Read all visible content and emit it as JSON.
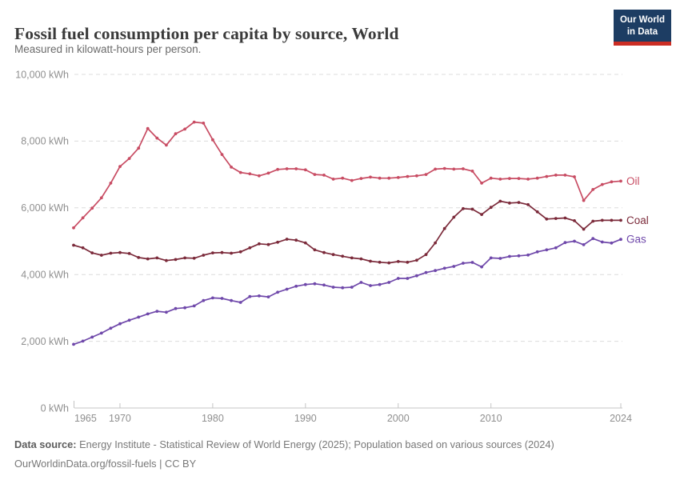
{
  "header": {
    "title": "Fossil fuel consumption per capita by source, World",
    "subtitle": "Measured in kilowatt-hours per person.",
    "logo": {
      "line1": "Our World",
      "line2": "in Data",
      "bg": "#1d3d63",
      "accent": "#cb2d24"
    }
  },
  "chart_data": {
    "type": "line",
    "title": "Fossil fuel consumption per capita by source, World",
    "ylabel": "kilowatt-hours per person",
    "xlim": [
      1965,
      2024
    ],
    "ylim": [
      0,
      10000
    ],
    "grid": "horizontal-dashed",
    "legend_position": "right-of-line-end",
    "x_ticks": [
      1965,
      1970,
      1980,
      1990,
      2000,
      2010,
      2024
    ],
    "x_tick_labels": [
      "1965",
      "1970",
      "1980",
      "1990",
      "2000",
      "2010",
      "2024"
    ],
    "y_ticks": [
      0,
      2000,
      4000,
      6000,
      8000,
      10000
    ],
    "y_tick_labels": [
      "0 kWh",
      "2,000 kWh",
      "4,000 kWh",
      "6,000 kWh",
      "8,000 kWh",
      "10,000 kWh"
    ],
    "x": [
      1965,
      1966,
      1967,
      1968,
      1969,
      1970,
      1971,
      1972,
      1973,
      1974,
      1975,
      1976,
      1977,
      1978,
      1979,
      1980,
      1981,
      1982,
      1983,
      1984,
      1985,
      1986,
      1987,
      1988,
      1989,
      1990,
      1991,
      1992,
      1993,
      1994,
      1995,
      1996,
      1997,
      1998,
      1999,
      2000,
      2001,
      2002,
      2003,
      2004,
      2005,
      2006,
      2007,
      2008,
      2009,
      2010,
      2011,
      2012,
      2013,
      2014,
      2015,
      2016,
      2017,
      2018,
      2019,
      2020,
      2021,
      2022,
      2023,
      2024
    ],
    "series": [
      {
        "name": "Oil",
        "color": "#c84c63",
        "values": [
          5400,
          5700,
          5990,
          6300,
          6740,
          7240,
          7480,
          7790,
          8380,
          8090,
          7880,
          8220,
          8360,
          8570,
          8540,
          8040,
          7600,
          7220,
          7060,
          7020,
          6960,
          7040,
          7150,
          7170,
          7170,
          7140,
          7000,
          6980,
          6860,
          6890,
          6820,
          6880,
          6920,
          6890,
          6890,
          6910,
          6940,
          6960,
          7000,
          7160,
          7180,
          7160,
          7170,
          7100,
          6740,
          6890,
          6860,
          6880,
          6880,
          6860,
          6890,
          6940,
          6980,
          6980,
          6930,
          6220,
          6550,
          6700,
          6780,
          6800
        ]
      },
      {
        "name": "Coal",
        "color": "#7b2a3a",
        "values": [
          4880,
          4800,
          4650,
          4580,
          4640,
          4660,
          4630,
          4510,
          4470,
          4500,
          4420,
          4450,
          4500,
          4490,
          4580,
          4650,
          4660,
          4640,
          4680,
          4800,
          4920,
          4900,
          4970,
          5060,
          5030,
          4950,
          4740,
          4660,
          4600,
          4550,
          4500,
          4470,
          4400,
          4370,
          4350,
          4390,
          4370,
          4430,
          4600,
          4950,
          5380,
          5720,
          5975,
          5960,
          5800,
          6015,
          6200,
          6145,
          6160,
          6095,
          5880,
          5665,
          5680,
          5695,
          5615,
          5360,
          5600,
          5625,
          5625,
          5625
        ]
      },
      {
        "name": "Gas",
        "color": "#6f48aa",
        "values": [
          1910,
          2005,
          2125,
          2245,
          2390,
          2525,
          2630,
          2725,
          2820,
          2900,
          2870,
          2980,
          3005,
          3060,
          3220,
          3300,
          3285,
          3220,
          3165,
          3340,
          3360,
          3330,
          3470,
          3560,
          3650,
          3700,
          3725,
          3685,
          3620,
          3605,
          3620,
          3765,
          3670,
          3700,
          3765,
          3885,
          3885,
          3965,
          4060,
          4120,
          4190,
          4245,
          4340,
          4365,
          4230,
          4500,
          4485,
          4545,
          4560,
          4585,
          4680,
          4740,
          4800,
          4960,
          5000,
          4895,
          5080,
          4975,
          4945,
          5055
        ]
      }
    ]
  },
  "footer": {
    "datasource_label": "Data source:",
    "datasource_text": " Energy Institute - Statistical Review of World Energy (2025); Population based on various sources (2024)",
    "link_line": "OurWorldinData.org/fossil-fuels | CC BY"
  }
}
